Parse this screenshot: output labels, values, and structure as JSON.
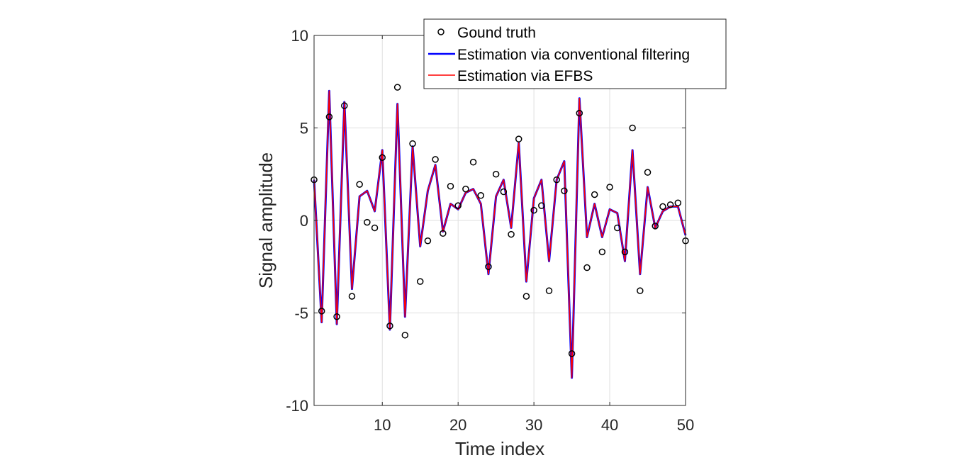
{
  "chart_data": {
    "type": "line",
    "xlabel": "Time index",
    "ylabel": "Signal amplitude",
    "xlim": [
      1,
      50
    ],
    "ylim": [
      -10,
      10
    ],
    "xticks": [
      10,
      20,
      30,
      40,
      50
    ],
    "yticks": [
      -10,
      -5,
      0,
      5,
      10
    ],
    "xtick_labels": [
      "10",
      "20",
      "30",
      "40",
      "50"
    ],
    "ytick_labels": [
      "-10",
      "-5",
      "0",
      "5",
      "10"
    ],
    "grid": true,
    "legend_position": "top-right",
    "x": [
      1,
      2,
      3,
      4,
      5,
      6,
      7,
      8,
      9,
      10,
      11,
      12,
      13,
      14,
      15,
      16,
      17,
      18,
      19,
      20,
      21,
      22,
      23,
      24,
      25,
      26,
      27,
      28,
      29,
      30,
      31,
      32,
      33,
      34,
      35,
      36,
      37,
      38,
      39,
      40,
      41,
      42,
      43,
      44,
      45,
      46,
      47,
      48,
      49,
      50
    ],
    "series": [
      {
        "name": "Gound truth",
        "style": "markers",
        "color": "#000000",
        "values": [
          2.2,
          -4.9,
          5.6,
          -5.2,
          6.2,
          -4.1,
          1.95,
          -0.1,
          -0.4,
          3.4,
          -5.7,
          7.2,
          -6.2,
          4.15,
          -3.3,
          -1.1,
          3.3,
          -0.7,
          1.85,
          0.8,
          1.7,
          3.15,
          1.35,
          -2.5,
          2.5,
          1.55,
          -0.75,
          4.4,
          -4.1,
          0.55,
          0.8,
          -3.8,
          2.2,
          1.6,
          -7.2,
          5.8,
          -2.55,
          1.4,
          -1.7,
          1.8,
          -0.4,
          -1.7,
          5.0,
          -3.8,
          2.6,
          -0.3,
          0.75,
          0.85,
          0.95,
          -1.1
        ]
      },
      {
        "name": "Estimation via conventional filtering",
        "style": "line",
        "color": "#0000ff",
        "values": [
          2.2,
          -5.5,
          7.0,
          -5.6,
          6.4,
          -3.7,
          1.3,
          1.6,
          0.5,
          3.8,
          -5.9,
          6.3,
          -5.2,
          4.0,
          -1.4,
          1.6,
          3.0,
          -0.6,
          0.9,
          0.6,
          1.5,
          1.7,
          0.9,
          -2.9,
          1.3,
          2.2,
          -0.4,
          4.2,
          -3.3,
          1.2,
          2.2,
          -2.2,
          2.2,
          3.2,
          -8.5,
          6.6,
          -0.9,
          0.9,
          -0.9,
          0.6,
          0.4,
          -2.2,
          3.8,
          -2.9,
          1.8,
          -0.4,
          0.5,
          0.75,
          0.75,
          -0.8
        ]
      },
      {
        "name": "Estimation via EFBS",
        "style": "line",
        "color": "#ff0000",
        "values": [
          2.2,
          -5.5,
          7.0,
          -5.6,
          6.4,
          -3.7,
          1.3,
          1.6,
          0.5,
          3.8,
          -5.9,
          6.3,
          -5.2,
          4.0,
          -1.4,
          1.6,
          3.0,
          -0.6,
          0.9,
          0.6,
          1.5,
          1.7,
          0.9,
          -2.9,
          1.3,
          2.2,
          -0.4,
          4.2,
          -3.3,
          1.2,
          2.2,
          -2.2,
          2.2,
          3.2,
          -8.5,
          6.6,
          -0.9,
          0.9,
          -0.9,
          0.6,
          0.4,
          -2.2,
          3.8,
          -2.9,
          1.8,
          -0.4,
          0.5,
          0.75,
          0.75,
          -0.8
        ]
      }
    ]
  }
}
